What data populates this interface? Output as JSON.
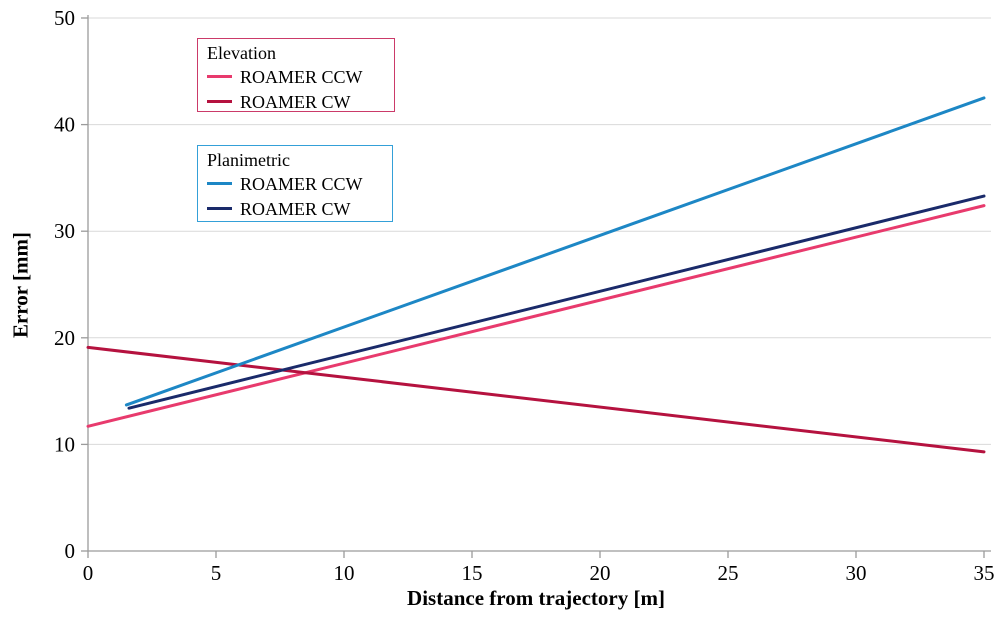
{
  "chart_data": {
    "type": "line",
    "xlabel": "Distance from trajectory [m]",
    "ylabel": "Error [mm]",
    "xlim": [
      0,
      35
    ],
    "ylim": [
      0,
      50
    ],
    "x_ticks": [
      0,
      5,
      10,
      15,
      20,
      25,
      30,
      35
    ],
    "y_ticks": [
      0,
      10,
      20,
      30,
      40,
      50
    ],
    "grid": "horizontal",
    "legend_position": "two boxes, top-left inside plot area",
    "colors": {
      "gridline": "#d9d9d9",
      "axis": "#9b9b9b",
      "text": "#000000",
      "background": "#ffffff"
    },
    "legend_groups": [
      {
        "title": "Elevation",
        "border_color": "#cb3a69",
        "entries": [
          {
            "label": "ROAMER CCW",
            "color": "#e83a6d"
          },
          {
            "label": "ROAMER CW",
            "color": "#b5123f"
          }
        ]
      },
      {
        "title": "Planimetric",
        "border_color": "#34a0d8",
        "entries": [
          {
            "label": "ROAMER CCW",
            "color": "#1d87c5"
          },
          {
            "label": "ROAMER CW",
            "color": "#1a2a6a"
          }
        ]
      }
    ],
    "series": [
      {
        "name": "Elevation ROAMER CCW",
        "color": "#e83a6d",
        "points": [
          [
            0,
            11.7
          ],
          [
            35,
            32.4
          ]
        ]
      },
      {
        "name": "Elevation ROAMER CW",
        "color": "#b5123f",
        "points": [
          [
            0,
            19.1
          ],
          [
            35,
            9.3
          ]
        ]
      },
      {
        "name": "Planimetric ROAMER CCW",
        "color": "#1d87c5",
        "points": [
          [
            1.5,
            13.7
          ],
          [
            35,
            42.5
          ]
        ]
      },
      {
        "name": "Planimetric ROAMER CW",
        "color": "#1a2a6a",
        "points": [
          [
            1.6,
            13.4
          ],
          [
            35,
            33.3
          ]
        ]
      }
    ]
  }
}
